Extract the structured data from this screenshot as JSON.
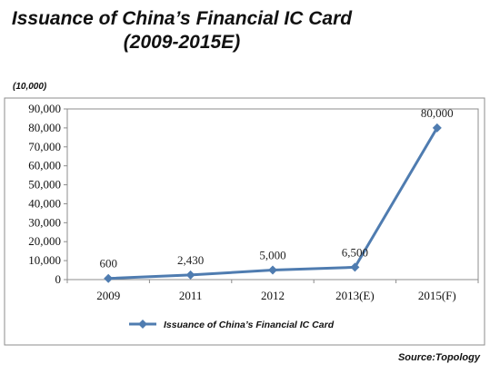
{
  "title_line1": "Issuance of China’s Financial IC Card",
  "title_line2": "(2009-2015E)",
  "unit_label": "(10,000)",
  "source": "Source:Topology",
  "colors": {
    "series": "#4f7cb0",
    "plot_border": "#8c8c8c",
    "frame_border": "#8c8c8c"
  },
  "chart_data": {
    "type": "line",
    "categories": [
      "2009",
      "2011",
      "2012",
      "2013(E)",
      "2015(F)"
    ],
    "series": [
      {
        "name": "Issuance of China’s Financial IC Card",
        "values": [
          600,
          2430,
          5000,
          6500,
          80000
        ]
      }
    ],
    "data_labels": [
      "600",
      "2,430",
      "5,000",
      "6,500",
      "80,000"
    ],
    "ylim": [
      0,
      90000
    ],
    "yticks": [
      "0",
      "10,000",
      "20,000",
      "30,000",
      "40,000",
      "50,000",
      "60,000",
      "70,000",
      "80,000",
      "90,000"
    ],
    "grid": false,
    "legend": "bottom",
    "marker": "diamond"
  }
}
